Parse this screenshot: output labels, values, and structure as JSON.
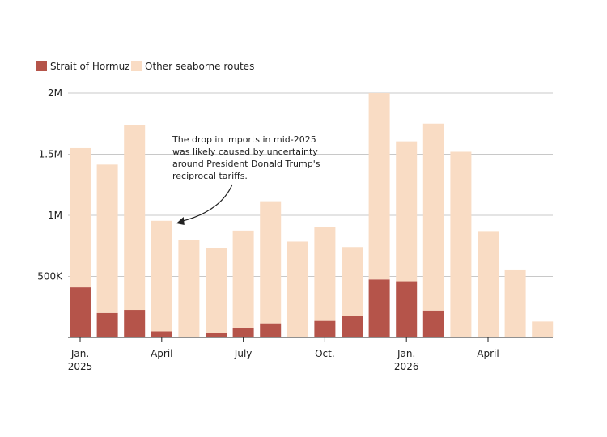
{
  "chart_data": {
    "type": "bar",
    "stacked": true,
    "months": [
      "2025-01",
      "2025-02",
      "2025-03",
      "2025-04",
      "2025-05",
      "2025-06",
      "2025-07",
      "2025-08",
      "2025-09",
      "2025-10",
      "2025-11",
      "2025-12",
      "2026-01",
      "2026-02",
      "2026-03",
      "2026-04",
      "2026-05",
      "2026-06"
    ],
    "series": [
      {
        "name": "Strait of Hormuz",
        "color": "#b5544a",
        "values": [
          410000,
          200000,
          225000,
          50000,
          0,
          35000,
          80000,
          115000,
          0,
          135000,
          175000,
          475000,
          460000,
          220000,
          0,
          0,
          0,
          0
        ]
      },
      {
        "name": "Other seaborne routes",
        "color": "#f9dcc4",
        "values": [
          1140000,
          1215000,
          1510000,
          905000,
          795000,
          700000,
          795000,
          1000000,
          785000,
          770000,
          565000,
          1525000,
          1145000,
          1530000,
          1520000,
          865000,
          550000,
          130000
        ]
      }
    ],
    "ylim": [
      0,
      2000000
    ],
    "y_ticks": [
      {
        "value": 500000,
        "label": "500K"
      },
      {
        "value": 1000000,
        "label": "1M"
      },
      {
        "value": 1500000,
        "label": "1.5M"
      },
      {
        "value": 2000000,
        "label": "2M"
      }
    ],
    "x_ticks": [
      {
        "month": "2025-01",
        "lines": [
          "Jan.",
          "2025"
        ]
      },
      {
        "month": "2025-04",
        "lines": [
          "April"
        ]
      },
      {
        "month": "2025-07",
        "lines": [
          "July"
        ]
      },
      {
        "month": "2025-10",
        "lines": [
          "Oct."
        ]
      },
      {
        "month": "2026-01",
        "lines": [
          "Jan.",
          "2026"
        ]
      },
      {
        "month": "2026-04",
        "lines": [
          "April"
        ]
      }
    ],
    "grid": true,
    "legend_position": "top-left",
    "annotation": {
      "lines": [
        "The drop in imports in mid-2025",
        "was likely caused by uncertainty",
        "around President Donald Trump's",
        "reciprocal tariffs."
      ],
      "target_month": "2025-04"
    }
  }
}
